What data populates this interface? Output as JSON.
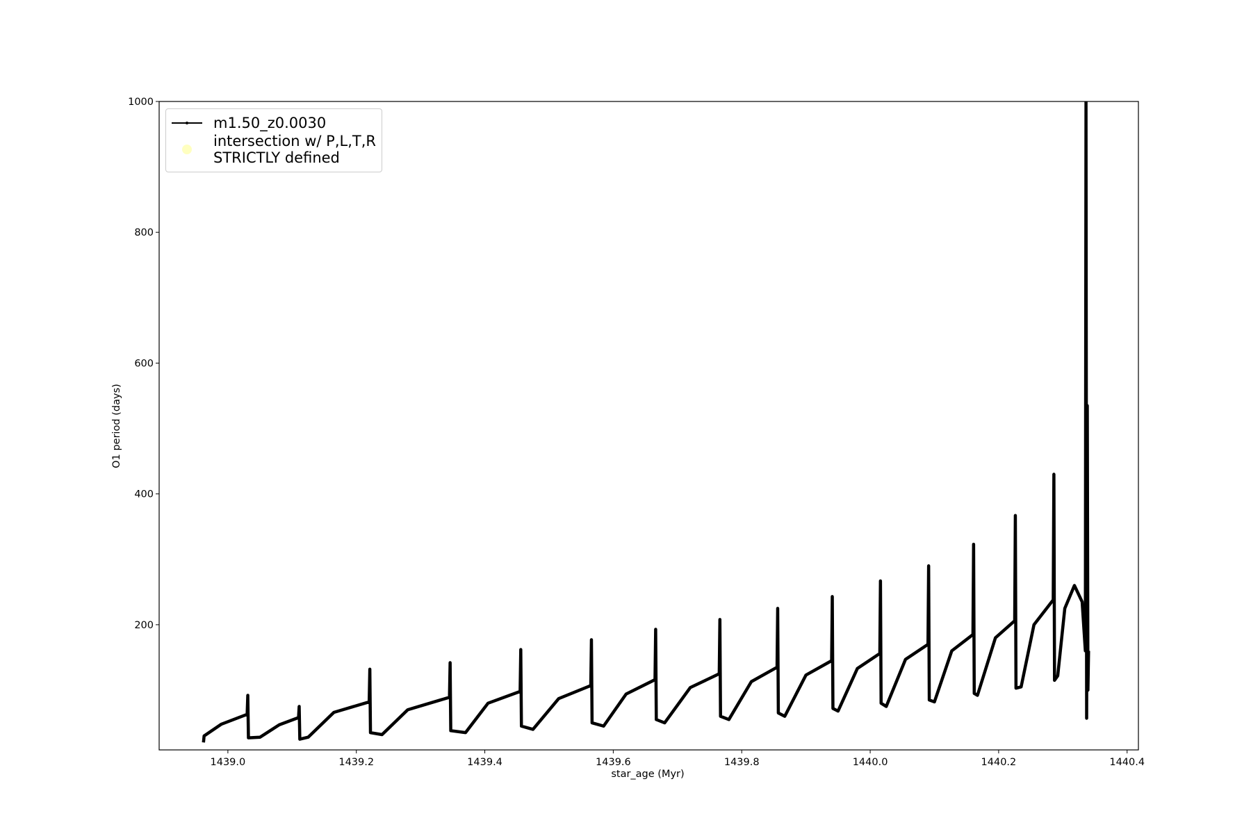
{
  "chart_data": {
    "type": "line",
    "xlabel": "star_age (Myr)",
    "ylabel": "O1 period (days)",
    "xlim": [
      1438.893,
      1440.4176
    ],
    "ylim": [
      8.6,
      1000
    ],
    "xticks": [
      {
        "value": 1439,
        "label": "1439.0"
      },
      1439.2,
      1439.4,
      1439.6,
      1439.8,
      {
        "value": 1440,
        "label": "1440.0"
      },
      1440.2,
      1440.4
    ],
    "yticks": [
      200,
      400,
      600,
      800,
      1000
    ],
    "legend": "upper left",
    "series": [
      {
        "name": "m1.50_z0.0030",
        "color": "#000000",
        "x": [
          1438.962,
          1438.963,
          1438.99,
          1439.03,
          1439.031,
          1439.032,
          1439.05,
          1439.08,
          1439.11,
          1439.111,
          1439.112,
          1439.125,
          1439.165,
          1439.22,
          1439.221,
          1439.222,
          1439.24,
          1439.28,
          1439.345,
          1439.346,
          1439.347,
          1439.37,
          1439.405,
          1439.455,
          1439.456,
          1439.457,
          1439.475,
          1439.515,
          1439.565,
          1439.566,
          1439.567,
          1439.585,
          1439.62,
          1439.665,
          1439.666,
          1439.667,
          1439.68,
          1439.72,
          1439.765,
          1439.766,
          1439.767,
          1439.78,
          1439.815,
          1439.855,
          1439.856,
          1439.857,
          1439.867,
          1439.9,
          1439.94,
          1439.941,
          1439.942,
          1439.95,
          1439.98,
          1440.015,
          1440.016,
          1440.017,
          1440.025,
          1440.055,
          1440.09,
          1440.091,
          1440.092,
          1440.1,
          1440.127,
          1440.16,
          1440.161,
          1440.162,
          1440.167,
          1440.195,
          1440.225,
          1440.226,
          1440.227,
          1440.235,
          1440.255,
          1440.285,
          1440.286,
          1440.287,
          1440.292,
          1440.303,
          1440.318,
          1440.33,
          1440.335,
          1440.336,
          1440.337,
          1440.338,
          1440.339,
          1440.34
        ],
        "values": [
          20,
          30,
          48,
          63,
          92,
          27,
          28,
          47,
          58,
          75,
          25,
          28,
          66,
          82,
          132,
          35,
          32,
          70,
          89,
          142,
          38,
          35,
          80,
          98,
          162,
          45,
          40,
          87,
          107,
          177,
          50,
          45,
          94,
          116,
          193,
          55,
          50,
          104,
          125,
          208,
          60,
          55,
          113,
          135,
          225,
          65,
          60,
          123,
          145,
          243,
          72,
          68,
          133,
          156,
          267,
          80,
          75,
          147,
          170,
          290,
          85,
          82,
          160,
          185,
          323,
          95,
          92,
          180,
          206,
          367,
          103,
          105,
          200,
          238,
          430,
          115,
          122,
          225,
          260,
          235,
          160,
          1000,
          57,
          535,
          100,
          160
        ]
      },
      {
        "name": "intersection w/ P,L,T,R\nSTRICTLY defined",
        "color": "#ffffc0",
        "x": [],
        "values": []
      }
    ]
  }
}
